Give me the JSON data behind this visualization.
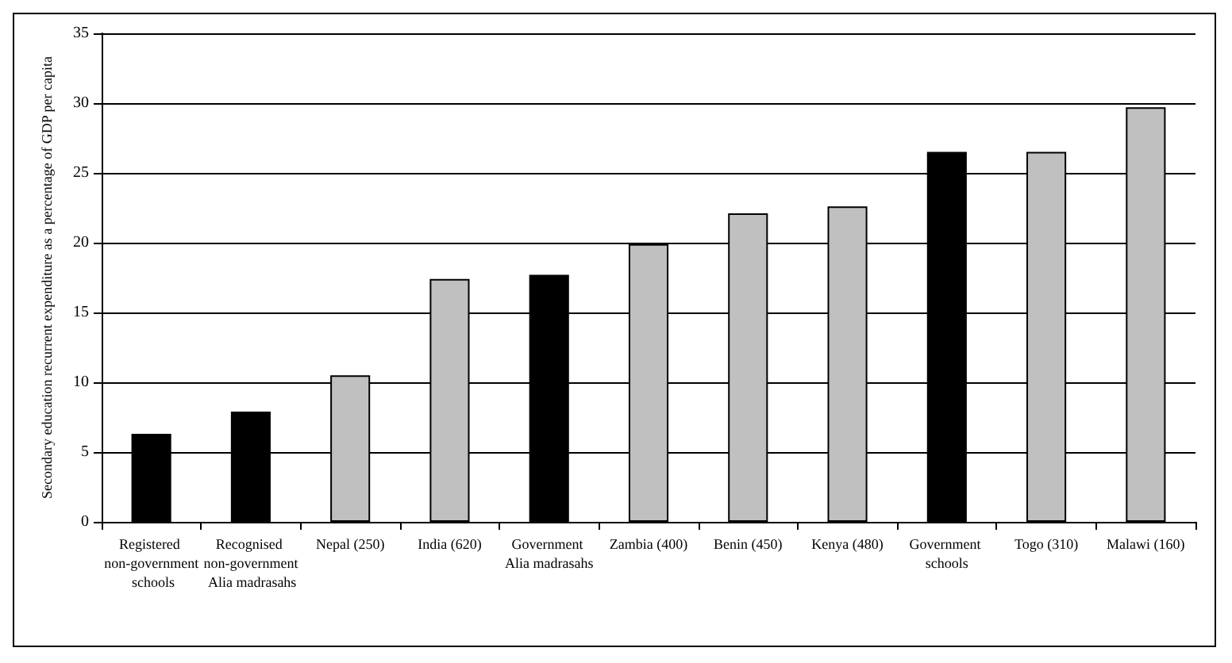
{
  "chart_data": {
    "type": "bar",
    "ylabel": "Secondary education recurrent expenditure as a percentage of GDP per capita",
    "categories": [
      "Registered non-government schools",
      "Recognised non-government Alia madrasahs",
      "Nepal (250)",
      "India (620)",
      "Government Alia madrasahs",
      "Zambia (400)",
      "Benin (450)",
      "Kenya (480)",
      "Government schools",
      "Togo (310)",
      "Malawi (160)"
    ],
    "values": [
      6.3,
      7.9,
      10.5,
      17.4,
      17.7,
      19.9,
      22.1,
      22.6,
      26.5,
      26.5,
      29.7
    ],
    "colors": [
      "#000000",
      "#000000",
      "#c0c0c0",
      "#c0c0c0",
      "#000000",
      "#c0c0c0",
      "#c0c0c0",
      "#c0c0c0",
      "#000000",
      "#c0c0c0",
      "#c0c0c0"
    ],
    "ylim": [
      0,
      35
    ],
    "yticks": [
      0,
      5,
      10,
      15,
      20,
      25,
      30,
      35
    ],
    "grid": "y"
  }
}
